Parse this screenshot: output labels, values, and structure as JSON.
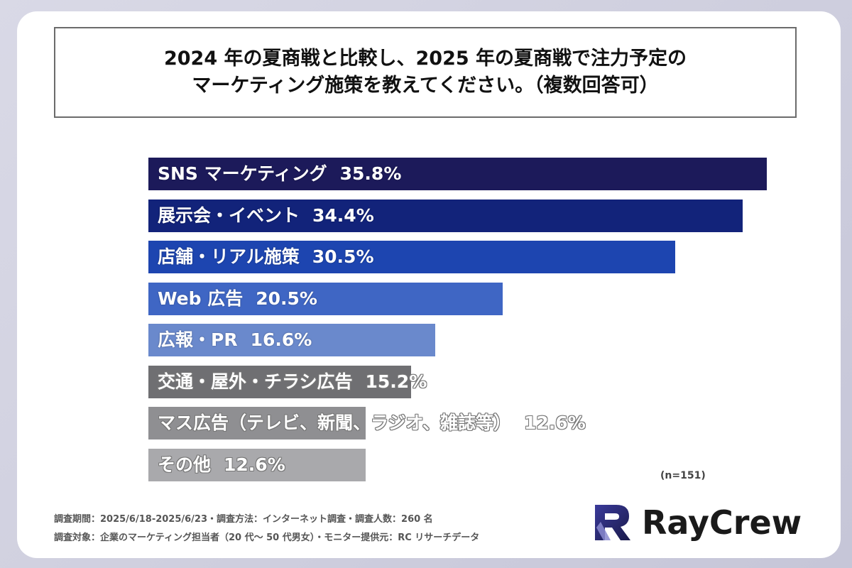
{
  "title": {
    "line1": "2024 年の夏商戦と比較し、2025 年の夏商戦で注力予定の",
    "line2": "マーケティング施策を教えてください。（複数回答可）"
  },
  "chart_data": {
    "type": "bar",
    "orientation": "horizontal",
    "categories": [
      "SNS マーケティング",
      "展示会・イベント",
      "店舗・リアル施策",
      "Web 広告",
      "広報・PR",
      "交通・屋外・チラシ広告",
      "マス広告（テレビ、新聞、ラジオ、雑誌等）",
      "その他"
    ],
    "values": [
      35.8,
      34.4,
      30.5,
      20.5,
      16.6,
      15.2,
      12.6,
      12.6
    ],
    "value_labels": [
      "35.8%",
      "34.4%",
      "30.5%",
      "20.5%",
      "16.6%",
      "15.2%",
      "12.6%",
      "12.6%"
    ],
    "bar_colors": [
      "#1c1a5a",
      "#12237a",
      "#1d45b0",
      "#3f66c4",
      "#6a89cc",
      "#6f6f72",
      "#8f8f92",
      "#a9a9ac"
    ],
    "label_style": [
      "white",
      "white",
      "white",
      "white",
      "white",
      "gray",
      "gray",
      "gray"
    ],
    "xlim": [
      0,
      37
    ],
    "grid": false,
    "note": "(n=151)"
  },
  "footer": {
    "line1": "調査期間：2025/6/18-2025/6/23・調査方法：インターネット調査・調査人数：260 名",
    "line2": "調査対象：企業のマーケティング担当者（20 代〜 50 代男女）・モニター提供元：RC リサーチデータ"
  },
  "logo": {
    "text": "RayCrew"
  }
}
